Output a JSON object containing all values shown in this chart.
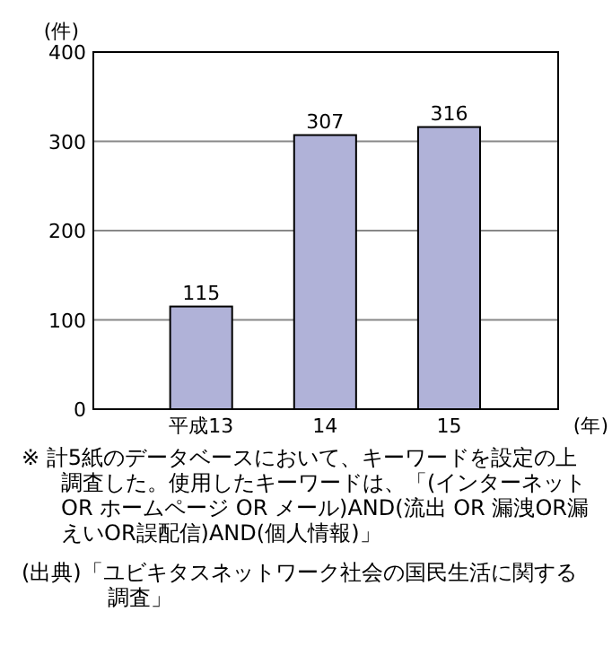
{
  "chart_data": {
    "type": "bar",
    "ylabel": "(件)",
    "xlabel": "(年)",
    "categories": [
      "平成13",
      "14",
      "15"
    ],
    "values": [
      115,
      307,
      316
    ],
    "color": "#b0b2d8",
    "ylim": [
      0,
      400
    ],
    "yticks": [
      0,
      100,
      200,
      300,
      400
    ],
    "grid": "y",
    "data_labels": true,
    "annotations": [
      "※ 計5紙のデータベースにおいて、キーワードを設定の上調査した。使用したキーワードは、「(インターネット OR ホームページ OR メール)AND(流出 OR 漏洩OR漏えいOR誤配信)AND(個人情報)」",
      "(出典)「ユビキタスネットワーク社会の国民生活に関する調査」"
    ]
  }
}
